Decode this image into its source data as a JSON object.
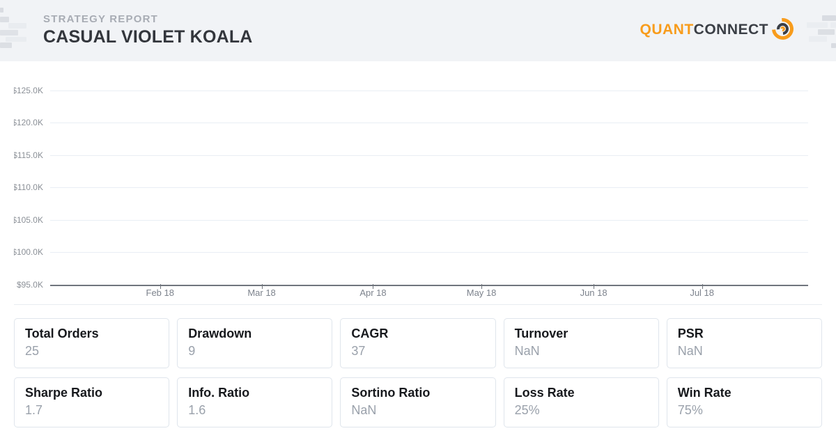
{
  "header": {
    "report_label": "STRATEGY REPORT",
    "strategy_name": "CASUAL VIOLET KOALA",
    "brand_quant": "QUANT",
    "brand_connect": "CONNECT",
    "brand_orange": "#f89c1c",
    "brand_dark": "#3b3f46"
  },
  "chart_data": {
    "type": "line",
    "title": "",
    "xlabel": "",
    "ylabel": "",
    "y_tick_labels": [
      "$125.0K",
      "$120.0K",
      "$115.0K",
      "$110.0K",
      "$105.0K",
      "$100.0K",
      "$95.0K"
    ],
    "ylim": [
      95000,
      127000
    ],
    "x_tick_labels": [
      "Feb 18",
      "Mar 18",
      "Apr 18",
      "May 18",
      "Jun 18",
      "Jul 18"
    ],
    "x_tick_positions_pct": [
      14.5,
      27.9,
      42.6,
      56.9,
      71.7,
      86.0
    ],
    "grid": true,
    "legend": "none",
    "series": []
  },
  "stats": [
    {
      "label": "Total Orders",
      "value": "25"
    },
    {
      "label": "Drawdown",
      "value": "9"
    },
    {
      "label": "CAGR",
      "value": "37"
    },
    {
      "label": "Turnover",
      "value": "NaN"
    },
    {
      "label": "PSR",
      "value": "NaN"
    },
    {
      "label": "Sharpe Ratio",
      "value": "1.7"
    },
    {
      "label": "Info. Ratio",
      "value": "1.6"
    },
    {
      "label": "Sortino Ratio",
      "value": "NaN"
    },
    {
      "label": "Loss Rate",
      "value": "25%"
    },
    {
      "label": "Win Rate",
      "value": "75%"
    }
  ]
}
